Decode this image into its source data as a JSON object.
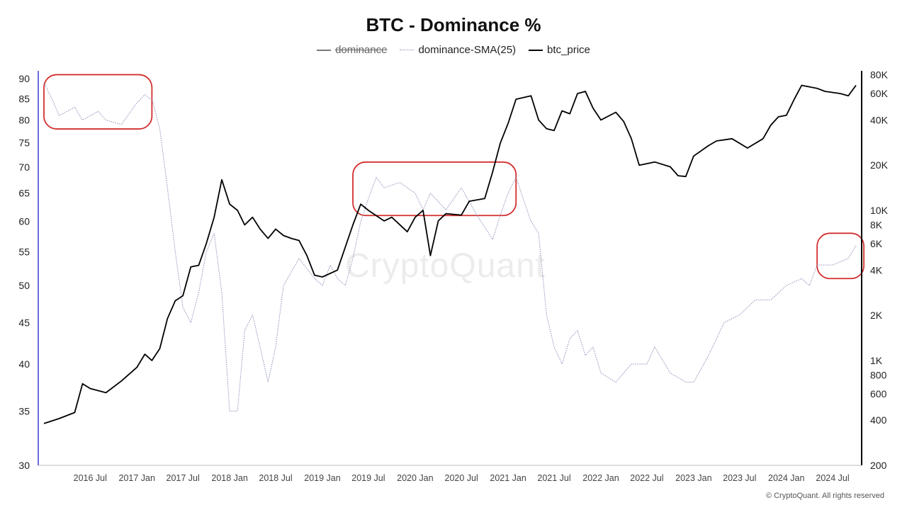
{
  "title": "BTC - Dominance %",
  "legend": [
    {
      "label": "dominance",
      "style": "solid-grey",
      "hidden": true
    },
    {
      "label": "dominance-SMA(25)",
      "style": "dotted-grey",
      "hidden": false
    },
    {
      "label": "btc_price",
      "style": "solid-black",
      "hidden": false
    }
  ],
  "watermark": "CryptoQuant",
  "copyright": "© CryptoQuant. All rights reserved",
  "chart_data": {
    "type": "line",
    "title": "BTC - Dominance %",
    "x_ticks": [
      "2016 Jul",
      "2017 Jan",
      "2017 Jul",
      "2018 Jan",
      "2018 Jul",
      "2019 Jan",
      "2019 Jul",
      "2020 Jan",
      "2020 Jul",
      "2021 Jan",
      "2021 Jul",
      "2022 Jan",
      "2022 Jul",
      "2023 Jan",
      "2023 Jul",
      "2024 Jan",
      "2024 Jul"
    ],
    "x_range": [
      "2016-01",
      "2024-10"
    ],
    "left_axis": {
      "scale": "log",
      "ticks": [
        30,
        35,
        40,
        45,
        50,
        55,
        60,
        65,
        70,
        75,
        80,
        85,
        90
      ],
      "range": [
        30,
        92
      ],
      "color": "#6b6bdf"
    },
    "right_axis": {
      "scale": "log",
      "ticks": [
        "200",
        "400",
        "600",
        "800",
        "1K",
        "2K",
        "4K",
        "6K",
        "8K",
        "10K",
        "20K",
        "40K",
        "60K",
        "80K"
      ],
      "tick_values": [
        200,
        400,
        600,
        800,
        1000,
        2000,
        4000,
        6000,
        8000,
        10000,
        20000,
        40000,
        60000,
        80000
      ],
      "range": [
        200,
        85000
      ]
    },
    "colors": {
      "dominance": "#9a9ac8",
      "sma": "#8a8fb8",
      "btc_price": "#000000",
      "annotation": "#d32f2f"
    },
    "series": [
      {
        "name": "dominance-SMA(25)",
        "axis": "left",
        "dates": [
          "2016-01",
          "2016-02",
          "2016-03",
          "2016-05",
          "2016-06",
          "2016-08",
          "2016-09",
          "2016-11",
          "2017-01",
          "2017-02",
          "2017-02-20",
          "2017-03",
          "2017-04",
          "2017-05",
          "2017-06",
          "2017-07",
          "2017-08",
          "2017-09",
          "2017-10",
          "2017-11",
          "2017-12",
          "2018-01",
          "2018-02",
          "2018-03",
          "2018-04",
          "2018-05",
          "2018-06",
          "2018-07",
          "2018-08",
          "2018-10",
          "2018-12",
          "2019-01",
          "2019-02",
          "2019-03",
          "2019-04",
          "2019-05",
          "2019-06",
          "2019-07",
          "2019-08",
          "2019-09",
          "2019-11",
          "2020-01",
          "2020-02",
          "2020-03",
          "2020-05",
          "2020-07",
          "2020-09",
          "2020-11",
          "2020-12",
          "2021-01",
          "2021-02",
          "2021-03",
          "2021-04",
          "2021-05",
          "2021-06",
          "2021-07",
          "2021-08",
          "2021-09",
          "2021-10",
          "2021-11",
          "2021-12",
          "2022-01",
          "2022-03",
          "2022-05",
          "2022-07",
          "2022-08",
          "2022-10",
          "2022-12",
          "2023-01",
          "2023-03",
          "2023-05",
          "2023-07",
          "2023-09",
          "2023-11",
          "2024-01",
          "2024-03",
          "2024-04",
          "2024-05",
          "2024-07",
          "2024-09",
          "2024-10"
        ],
        "values": [
          89,
          85,
          81,
          83,
          80,
          82,
          80,
          79,
          84,
          86,
          85,
          85,
          78,
          66,
          55,
          47,
          45,
          49,
          55,
          58,
          49,
          35,
          35,
          44,
          46,
          42,
          38,
          42,
          50,
          54,
          51,
          50,
          53,
          51,
          50,
          54,
          60,
          64,
          68,
          66,
          67,
          65,
          62,
          65,
          62,
          66,
          61,
          57,
          61,
          65,
          68,
          64,
          60,
          58,
          46,
          42,
          40,
          43,
          44,
          41,
          42,
          39,
          38,
          40,
          40,
          42,
          39,
          38,
          38,
          41,
          45,
          46,
          48,
          48,
          50,
          51,
          50,
          53,
          53,
          54,
          56
        ]
      },
      {
        "name": "btc_price",
        "axis": "right",
        "dates": [
          "2016-01",
          "2016-03",
          "2016-05",
          "2016-06",
          "2016-07",
          "2016-09",
          "2016-11",
          "2017-01",
          "2017-02",
          "2017-03",
          "2017-04",
          "2017-05",
          "2017-06",
          "2017-07",
          "2017-08",
          "2017-09",
          "2017-10",
          "2017-11",
          "2017-12",
          "2018-01",
          "2018-02",
          "2018-03",
          "2018-04",
          "2018-05",
          "2018-06",
          "2018-07",
          "2018-08",
          "2018-09",
          "2018-10",
          "2018-11",
          "2018-12",
          "2019-01",
          "2019-03",
          "2019-05",
          "2019-06",
          "2019-07",
          "2019-09",
          "2019-10",
          "2019-12",
          "2020-01",
          "2020-02",
          "2020-03",
          "2020-04",
          "2020-05",
          "2020-07",
          "2020-08",
          "2020-10",
          "2020-11",
          "2020-12",
          "2021-01",
          "2021-02",
          "2021-04",
          "2021-05",
          "2021-06",
          "2021-07",
          "2021-08",
          "2021-09",
          "2021-10",
          "2021-11",
          "2021-12",
          "2022-01",
          "2022-03",
          "2022-04",
          "2022-05",
          "2022-06",
          "2022-08",
          "2022-10",
          "2022-11",
          "2022-12",
          "2023-01",
          "2023-03",
          "2023-04",
          "2023-06",
          "2023-08",
          "2023-10",
          "2023-11",
          "2023-12",
          "2024-01",
          "2024-02",
          "2024-03",
          "2024-05",
          "2024-06",
          "2024-08",
          "2024-09",
          "2024-10"
        ],
        "values": [
          380,
          410,
          450,
          700,
          650,
          610,
          730,
          900,
          1100,
          1000,
          1200,
          1900,
          2500,
          2700,
          4200,
          4300,
          6000,
          9000,
          16000,
          11000,
          10000,
          8000,
          9000,
          7500,
          6500,
          7500,
          6800,
          6500,
          6300,
          5000,
          3700,
          3600,
          4000,
          8000,
          11000,
          10000,
          8500,
          9000,
          7200,
          9000,
          10000,
          5000,
          8500,
          9500,
          9300,
          11500,
          12000,
          18000,
          28000,
          38000,
          55000,
          58000,
          40000,
          35000,
          34000,
          46000,
          44000,
          60000,
          62000,
          48000,
          40000,
          45000,
          39000,
          30000,
          20000,
          21000,
          19500,
          17000,
          16800,
          23000,
          27000,
          29000,
          30000,
          26000,
          30000,
          37000,
          42000,
          43000,
          55000,
          68000,
          65000,
          62000,
          60000,
          58000,
          68000
        ]
      }
    ],
    "annotations": [
      {
        "type": "rounded-rect",
        "from": "2016-01",
        "to": "2017-03",
        "axis": "left",
        "y_range": [
          78,
          91
        ]
      },
      {
        "type": "rounded-rect",
        "from": "2019-05",
        "to": "2021-02",
        "axis": "left",
        "y_range": [
          61,
          71
        ]
      },
      {
        "type": "rounded-rect",
        "from": "2024-05",
        "to": "2024-11",
        "axis": "left",
        "y_range": [
          51,
          58
        ]
      }
    ]
  }
}
